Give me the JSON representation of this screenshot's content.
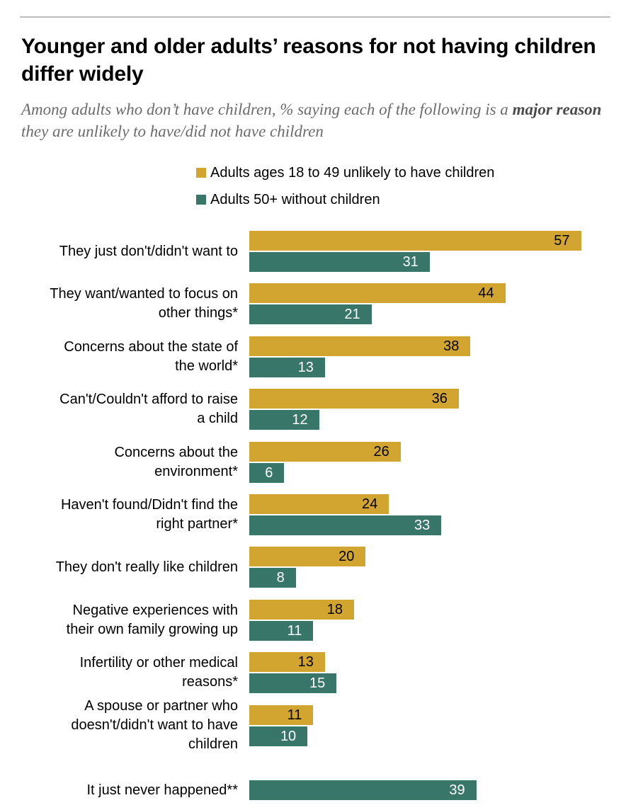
{
  "chart_data": {
    "type": "bar",
    "orientation": "horizontal",
    "title": "Younger and older adults’ reasons for not having children differ widely",
    "subtitle_parts": [
      "Among adults who don’t have children, % saying each of the following is a ",
      "major reason",
      " they are unlikely to have/did not have children"
    ],
    "legend": [
      "Adults ages 18 to 49 unlikely to have children",
      "Adults 50+ without children"
    ],
    "colors": [
      "#D1A530",
      "#39766A"
    ],
    "categories": [
      [
        "They just don't/didn't want to"
      ],
      [
        "They want/wanted to focus on",
        "other things*"
      ],
      [
        "Concerns about the state of",
        "the world*"
      ],
      [
        "Can't/Couldn't afford to raise",
        "a child"
      ],
      [
        "Concerns about the",
        "environment*"
      ],
      [
        "Haven't found/Didn't find the",
        "right partner*"
      ],
      [
        "They don't really like children"
      ],
      [
        "Negative experiences with",
        "their own family growing up"
      ],
      [
        "Infertility or other medical",
        "reasons*"
      ],
      [
        "A spouse or partner who",
        "doesn't/didn't want to have",
        "children"
      ],
      [
        "It just never happened**"
      ]
    ],
    "series": [
      {
        "name": "Adults ages 18 to 49 unlikely to have children",
        "values": [
          57,
          44,
          38,
          36,
          26,
          24,
          20,
          18,
          13,
          11,
          null
        ]
      },
      {
        "name": "Adults 50+ without children",
        "values": [
          31,
          21,
          13,
          12,
          6,
          33,
          8,
          11,
          15,
          10,
          39
        ]
      }
    ],
    "xlim": [
      0,
      60
    ]
  }
}
